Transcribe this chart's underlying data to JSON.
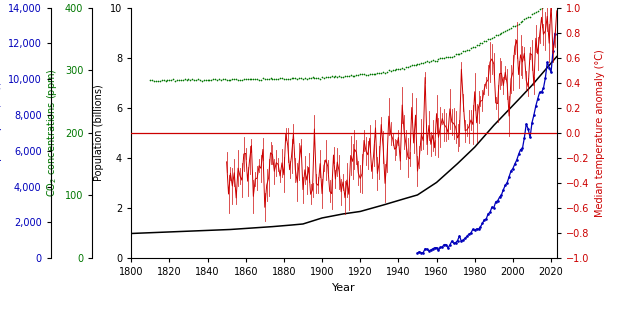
{
  "xlabel": "Year",
  "xlim": [
    1800,
    2023
  ],
  "xticks": [
    1800,
    1820,
    1840,
    1860,
    1880,
    1900,
    1920,
    1940,
    1960,
    1980,
    2000,
    2020
  ],
  "pop_ylim": [
    0,
    10
  ],
  "pop_yticks": [
    0,
    2,
    4,
    6,
    8,
    10
  ],
  "pop_ylabel": "Population (billions)",
  "pop_color": "#000000",
  "gdp_ylim": [
    0,
    14000
  ],
  "gdp_yticks": [
    0,
    2000,
    4000,
    6000,
    8000,
    10000,
    12000,
    14000
  ],
  "gdp_ylabel": "GDP per capita (US$)",
  "gdp_color": "#0000bb",
  "co2_ylim": [
    0,
    400
  ],
  "co2_yticks": [
    0,
    100,
    200,
    300,
    400
  ],
  "co2_ylabel": "CO2 concentrations (ppm)",
  "co2_color": "#007700",
  "temp_ylim": [
    -1.0,
    1.0
  ],
  "temp_yticks": [
    -1.0,
    -0.8,
    -0.6,
    -0.4,
    -0.2,
    0.0,
    0.2,
    0.4,
    0.6,
    0.8,
    1.0
  ],
  "temp_ylabel": "Median temperature anomaly (°C)",
  "temp_color": "#cc0000",
  "hline_color": "#cc0000",
  "fig_width": 6.4,
  "fig_height": 3.09,
  "dpi": 100,
  "pop_data_years": [
    1800,
    1810,
    1820,
    1830,
    1840,
    1850,
    1860,
    1870,
    1880,
    1890,
    1900,
    1910,
    1920,
    1930,
    1940,
    1950,
    1960,
    1970,
    1980,
    1990,
    2000,
    2010,
    2020,
    2023
  ],
  "pop_data_vals": [
    0.98,
    1.01,
    1.04,
    1.07,
    1.1,
    1.13,
    1.18,
    1.23,
    1.29,
    1.36,
    1.6,
    1.75,
    1.86,
    2.07,
    2.3,
    2.52,
    3.02,
    3.7,
    4.43,
    5.3,
    6.09,
    6.9,
    7.79,
    8.05
  ],
  "gdp_data_years": [
    1950,
    1955,
    1960,
    1965,
    1970,
    1975,
    1980,
    1985,
    1990,
    1995,
    2000,
    2005,
    2007,
    2009,
    2010,
    2012,
    2014,
    2016,
    2018,
    2020,
    2022
  ],
  "gdp_data_vals": [
    300,
    380,
    500,
    680,
    900,
    1100,
    1600,
    2100,
    3000,
    3800,
    5000,
    6200,
    7500,
    6800,
    7500,
    8500,
    9200,
    9500,
    11000,
    10500,
    12500
  ],
  "co2_years_knots": [
    1810,
    1840,
    1870,
    1900,
    1930,
    1960,
    1970,
    1980,
    1990,
    2000,
    2005,
    2010,
    2015,
    2020,
    2023
  ],
  "co2_vals_knots": [
    284,
    285,
    286,
    288,
    295,
    317,
    325,
    338,
    354,
    369,
    379,
    390,
    400,
    413,
    421
  ],
  "temp_years_knots": [
    1850,
    1870,
    1890,
    1910,
    1930,
    1940,
    1950,
    1960,
    1970,
    1980,
    1990,
    2000,
    2005,
    2010,
    2015,
    2020,
    2023
  ],
  "temp_vals_knots": [
    -0.38,
    -0.3,
    -0.27,
    -0.4,
    -0.1,
    -0.05,
    -0.1,
    -0.02,
    0.02,
    0.27,
    0.44,
    0.42,
    0.55,
    0.57,
    0.87,
    0.85,
    0.89
  ]
}
